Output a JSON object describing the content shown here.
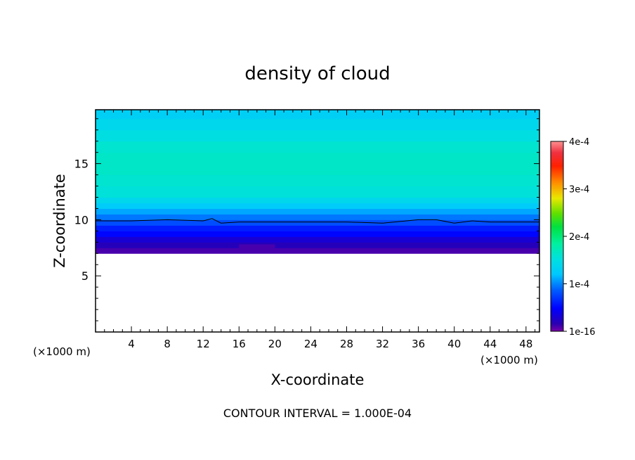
{
  "chart_data": {
    "type": "heatmap",
    "title": "density of cloud",
    "xlabel": "X-coordinate",
    "ylabel": "Z-coordinate",
    "x_unit_left": "(×1000 m)",
    "x_unit_right": "(×1000 m)",
    "xlim": [
      0,
      49.5
    ],
    "ylim": [
      0,
      19.8
    ],
    "x_ticks": [
      4,
      8,
      12,
      16,
      20,
      24,
      28,
      32,
      36,
      40,
      44,
      48
    ],
    "x_tick_labels": [
      "4",
      "8",
      "12",
      "16",
      "20",
      "24",
      "28",
      "32",
      "36",
      "40",
      "44",
      "48"
    ],
    "y_ticks": [
      5,
      10,
      15
    ],
    "y_tick_labels": [
      "5",
      "10",
      "15"
    ],
    "footer": "CONTOUR INTERVAL = 1.000E-04",
    "colorbar": {
      "min": 1e-16,
      "max": 0.0004,
      "tick_values": [
        1e-16,
        0.0001,
        0.0002,
        0.0003,
        0.0004
      ],
      "tick_labels": [
        "1e-16",
        "1e-4",
        "2e-4",
        "3e-4",
        "4e-4"
      ]
    },
    "vertical_profile": {
      "z": [
        7.0,
        7.5,
        8.0,
        8.5,
        9.0,
        9.5,
        10.0,
        10.5,
        11.0,
        11.5,
        12.0,
        13.0,
        14.0,
        15.0,
        16.0,
        17.0,
        18.0,
        19.0,
        19.8
      ],
      "density": [
        1e-05,
        2e-05,
        3e-05,
        5e-05,
        6e-05,
        8e-05,
        9.5e-05,
        0.00011,
        0.000125,
        0.00014,
        0.000155,
        0.00016,
        0.000165,
        0.000165,
        0.00016,
        0.00015,
        0.00014,
        0.00013,
        0.00012
      ]
    },
    "cloud_base_z": 7.2,
    "contour_line": {
      "level": 0.0001,
      "x": [
        0,
        4,
        8,
        12,
        13,
        14,
        16,
        20,
        24,
        28,
        32,
        36,
        38,
        40,
        42,
        44,
        48,
        49.5
      ],
      "z": [
        9.9,
        9.9,
        10.0,
        9.9,
        10.1,
        9.7,
        9.8,
        9.8,
        9.8,
        9.8,
        9.7,
        10.0,
        10.0,
        9.7,
        9.9,
        9.8,
        9.8,
        9.8
      ]
    }
  }
}
